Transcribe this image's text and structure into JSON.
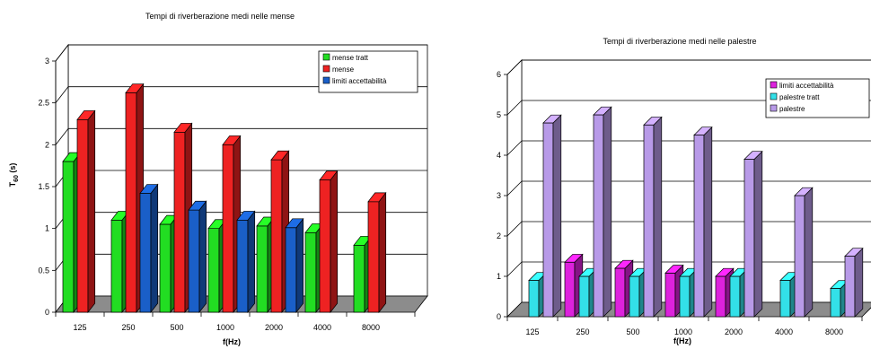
{
  "chart_data": [
    {
      "type": "bar",
      "title": "Tempi di riverberazione medi nelle mense",
      "xlabel": "f(Hz)",
      "ylabel": "T",
      "ylabel_sub": "60",
      "ylabel_unit": "(s)",
      "categories": [
        "125",
        "250",
        "500",
        "1000",
        "2000",
        "4000",
        "8000"
      ],
      "ylim": [
        0,
        3
      ],
      "yticks": [
        "0",
        "0.5",
        "1",
        "1.5",
        "2",
        "2.5",
        "3"
      ],
      "grid": true,
      "legend_position": "top-right",
      "series": [
        {
          "name": "mense tratt",
          "color": "#22dd22",
          "values": [
            1.8,
            1.1,
            1.05,
            1.0,
            1.03,
            0.95,
            0.8
          ]
        },
        {
          "name": "mense",
          "color": "#ee2222",
          "values": [
            2.3,
            2.62,
            2.15,
            2.0,
            1.82,
            1.58,
            1.32
          ]
        },
        {
          "name": "limiti accettabilità",
          "color": "#1a5fc8",
          "values": [
            null,
            1.42,
            1.22,
            1.1,
            1.01,
            null,
            null
          ]
        }
      ]
    },
    {
      "type": "bar",
      "title": "Tempi di riverberazione medi nelle palestre",
      "xlabel": "f(Hz)",
      "ylabel": "",
      "categories": [
        "125",
        "250",
        "500",
        "1000",
        "2000",
        "4000",
        "8000"
      ],
      "ylim": [
        0,
        6
      ],
      "yticks": [
        "0",
        "1",
        "2",
        "3",
        "4",
        "5",
        "6"
      ],
      "grid": true,
      "legend_position": "top-right",
      "series": [
        {
          "name": "limiti accettabilità",
          "color": "#dd22dd",
          "values": [
            null,
            1.35,
            1.2,
            1.08,
            1.0,
            null,
            null
          ]
        },
        {
          "name": "palestre tratt",
          "color": "#33e0e8",
          "values": [
            0.9,
            1.0,
            1.0,
            1.0,
            1.0,
            0.9,
            0.7
          ]
        },
        {
          "name": "palestre",
          "color": "#b89ae8",
          "values": [
            4.8,
            5.0,
            4.75,
            4.5,
            3.9,
            3.0,
            1.5
          ]
        }
      ]
    }
  ]
}
